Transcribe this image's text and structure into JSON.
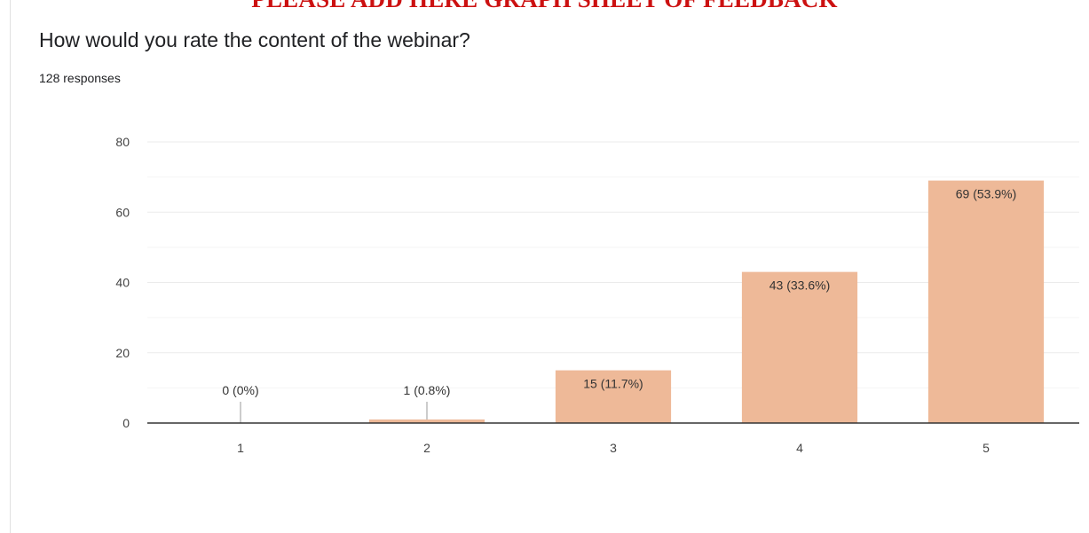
{
  "banner": "PLEASE ADD HERE GRAPH SHEET OF FEEDBACK",
  "form": {
    "question": "How would you rate the content of the webinar?",
    "responses": "128 responses"
  },
  "colors": {
    "bar": "#EEB998",
    "grid": "#EBEBEB",
    "axis": "#333333",
    "banner": "#CC1111"
  },
  "chart_data": {
    "type": "bar",
    "categories": [
      "1",
      "2",
      "3",
      "4",
      "5"
    ],
    "values": [
      0,
      1,
      15,
      43,
      69
    ],
    "data_labels": [
      "0 (0%)",
      "1 (0.8%)",
      "15 (11.7%)",
      "43 (33.6%)",
      "69 (53.9%)"
    ],
    "yticks": [
      0,
      20,
      40,
      60,
      80
    ],
    "ylim": [
      0,
      80
    ],
    "grid": true,
    "legend": "none"
  }
}
